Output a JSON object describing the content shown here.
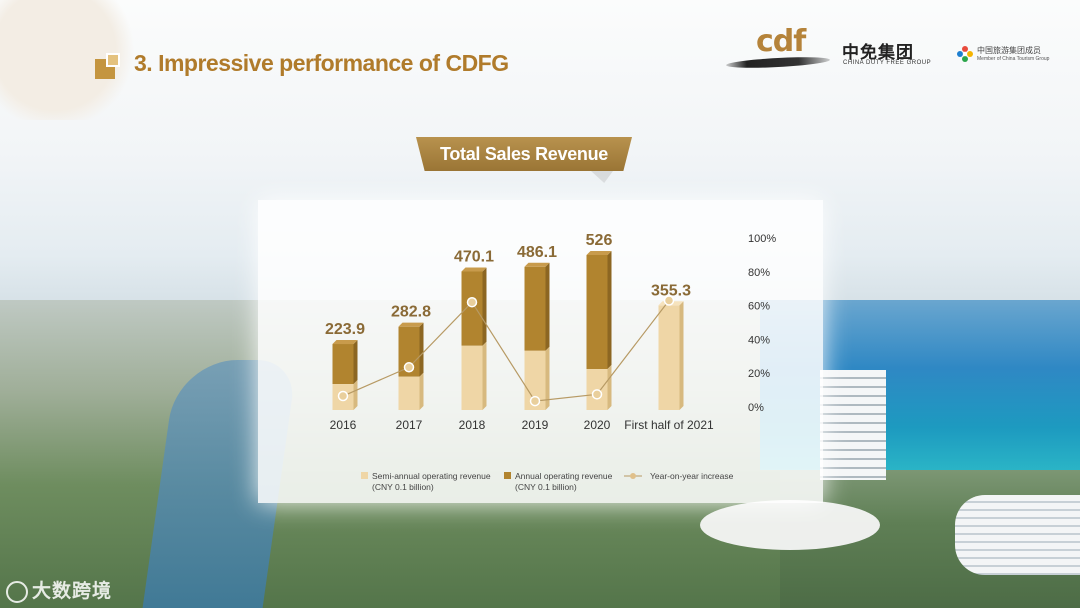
{
  "header": {
    "title": "3. Impressive performance of CDFG",
    "logo_main": "cdf",
    "logo_cn": "中免集团",
    "logo_en": "CHINA DUTY FREE GROUP",
    "partner_cn": "中国旅游集团成员",
    "partner_en": "Member of China Tourism Group"
  },
  "ribbon": {
    "label": "Total Sales Revenue"
  },
  "watermark": "大数跨境",
  "colors": {
    "annual": "#b1842f",
    "semi_annual": "#efd6a6",
    "line": "#b79a64",
    "title": "#b07b2b"
  },
  "chart_data": {
    "type": "bar",
    "title": "Total Sales Revenue",
    "categories": [
      "2016",
      "2017",
      "2018",
      "2019",
      "2020",
      "First half of 2021"
    ],
    "series": [
      {
        "name": "Semi-annual operating revenue (CNY 0.1 billion)",
        "values": [
          88,
          113,
          218,
          201,
          139,
          355.3
        ]
      },
      {
        "name": "Annual operating revenue (CNY 0.1 billion)",
        "values": [
          223.9,
          282.8,
          470.1,
          486.1,
          526,
          null
        ]
      },
      {
        "name": "Year-on-year increase",
        "axis": "right",
        "values": [
          6.5,
          23.5,
          62,
          3.5,
          7.5,
          63
        ]
      }
    ],
    "total_labels": [
      "223.9",
      "282.8",
      "470.1",
      "486.1",
      "526",
      "355.3"
    ],
    "legend": [
      {
        "label": "Semi-annual operating revenue\n(CNY 0.1 billion)",
        "kind": "semi"
      },
      {
        "label": "Annual operating revenue\n(CNY 0.1 billion)",
        "kind": "annual"
      },
      {
        "label": "Year-on-year increase",
        "kind": "line"
      }
    ],
    "right_ticks": [
      "0%",
      "20%",
      "40%",
      "60%",
      "80%",
      "100%"
    ],
    "ylim": [
      0,
      526
    ],
    "y2lim": [
      0,
      100
    ],
    "grid": false,
    "legend_position": "bottom"
  }
}
